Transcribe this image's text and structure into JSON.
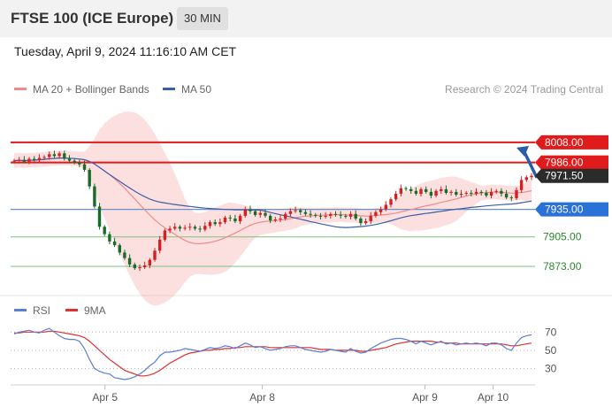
{
  "header": {
    "title": "FTSE 100 (ICE Europe)",
    "interval": "30 MIN"
  },
  "datetime": "Tuesday, April 9, 2024 11:16:10 AM CET",
  "colors": {
    "up": "#d62020",
    "down": "#1a6b2a",
    "bollinger": "#f7a6a6",
    "ma20": "#f08a8a",
    "ma50": "#3b5ea8",
    "resistance": "#e11b1b",
    "support_fill": "#2a72d8",
    "support_line": "#6b90c8",
    "target_green": "#7cc27c",
    "rsi": "#5b7fd6",
    "rsi_ma": "#e03030",
    "arrow": "#2a5da8"
  },
  "chart_data": [
    {
      "type": "line",
      "panel": "price",
      "legend": [
        {
          "name": "MA 20 + Bollinger Bands",
          "color": "#f08a8a"
        },
        {
          "name": "MA 50",
          "color": "#3b5ea8"
        }
      ],
      "credit": "Research © 2024 Trading Central",
      "legend_position": "top-left",
      "ylim": [
        7845,
        8030
      ],
      "x_labels": [
        "Apr 5",
        "Apr 8",
        "Apr 9",
        "Apr 10"
      ],
      "levels": [
        {
          "label": "8008.00",
          "value": 8008,
          "kind": "resistance"
        },
        {
          "label": "7986.00",
          "value": 7986,
          "kind": "resistance"
        },
        {
          "label": "7971.50",
          "value": 7971.5,
          "kind": "last"
        },
        {
          "label": "7935.00",
          "value": 7935,
          "kind": "pivot"
        },
        {
          "label": "7905.00",
          "value": 7905,
          "kind": "target"
        },
        {
          "label": "7873.00",
          "value": 7873,
          "kind": "target"
        }
      ],
      "close": [
        7988,
        7989,
        7987,
        7990,
        7989,
        7991,
        7992,
        7995,
        7993,
        7996,
        7990,
        7988,
        7986,
        7984,
        7978,
        7960,
        7938,
        7916,
        7908,
        7900,
        7896,
        7888,
        7882,
        7875,
        7871,
        7872,
        7874,
        7880,
        7890,
        7902,
        7912,
        7914,
        7916,
        7914,
        7915,
        7916,
        7914,
        7913,
        7917,
        7921,
        7919,
        7921,
        7926,
        7925,
        7922,
        7928,
        7935,
        7933,
        7929,
        7931,
        7928,
        7923,
        7924,
        7925,
        7930,
        7933,
        7934,
        7932,
        7930,
        7929,
        7928,
        7927,
        7928,
        7930,
        7929,
        7928,
        7927,
        7930,
        7925,
        7920,
        7922,
        7928,
        7932,
        7935,
        7940,
        7946,
        7952,
        7958,
        7957,
        7955,
        7952,
        7957,
        7954,
        7950,
        7955,
        7957,
        7953,
        7954,
        7951,
        7952,
        7953,
        7952,
        7954,
        7953,
        7950,
        7954,
        7955,
        7952,
        7948,
        7947,
        7956,
        7967,
        7970,
        7971.5
      ],
      "rsi": {
        "series": [
          {
            "name": "RSI",
            "color": "#5b7fd6"
          },
          {
            "name": "9MA",
            "color": "#e03030"
          }
        ],
        "ticks": [
          "70",
          "50",
          "30"
        ],
        "ylim": [
          15,
          80
        ],
        "rsi_values": [
          68,
          70,
          71,
          72,
          70,
          69,
          72,
          74,
          70,
          66,
          63,
          62,
          62,
          60,
          52,
          40,
          30,
          27,
          25,
          24,
          20,
          19,
          18,
          19,
          21,
          24,
          28,
          33,
          37,
          44,
          48,
          48,
          49,
          50,
          52,
          51,
          50,
          49,
          51,
          53,
          52,
          53,
          55,
          54,
          52,
          55,
          58,
          56,
          53,
          54,
          52,
          50,
          51,
          52,
          54,
          55,
          55,
          53,
          51,
          50,
          49,
          48,
          49,
          51,
          50,
          49,
          48,
          52,
          49,
          47,
          48,
          52,
          55,
          58,
          60,
          62,
          63,
          63,
          62,
          60,
          57,
          60,
          58,
          56,
          58,
          60,
          57,
          58,
          56,
          57,
          58,
          57,
          58,
          57,
          55,
          58,
          58,
          56,
          52,
          50,
          58,
          64,
          66,
          67
        ],
        "ma_values": [
          69,
          69,
          70,
          70,
          70,
          70,
          70,
          71,
          71,
          70,
          69,
          68,
          67,
          66,
          64,
          60,
          55,
          50,
          45,
          40,
          36,
          32,
          28,
          26,
          24,
          22,
          22,
          23,
          25,
          28,
          32,
          36,
          39,
          42,
          45,
          47,
          48,
          49,
          50,
          50,
          51,
          51,
          52,
          52,
          53,
          53,
          54,
          54,
          54,
          54,
          54,
          53,
          53,
          53,
          53,
          53,
          53,
          53,
          53,
          53,
          52,
          51,
          51,
          51,
          50,
          50,
          50,
          50,
          50,
          49,
          49,
          50,
          51,
          52,
          53,
          55,
          57,
          58,
          59,
          60,
          60,
          60,
          60,
          60,
          59,
          59,
          58,
          58,
          58,
          57,
          57,
          57,
          57,
          57,
          57,
          57,
          57,
          57,
          56,
          55,
          55,
          56,
          57,
          58
        ]
      }
    }
  ]
}
